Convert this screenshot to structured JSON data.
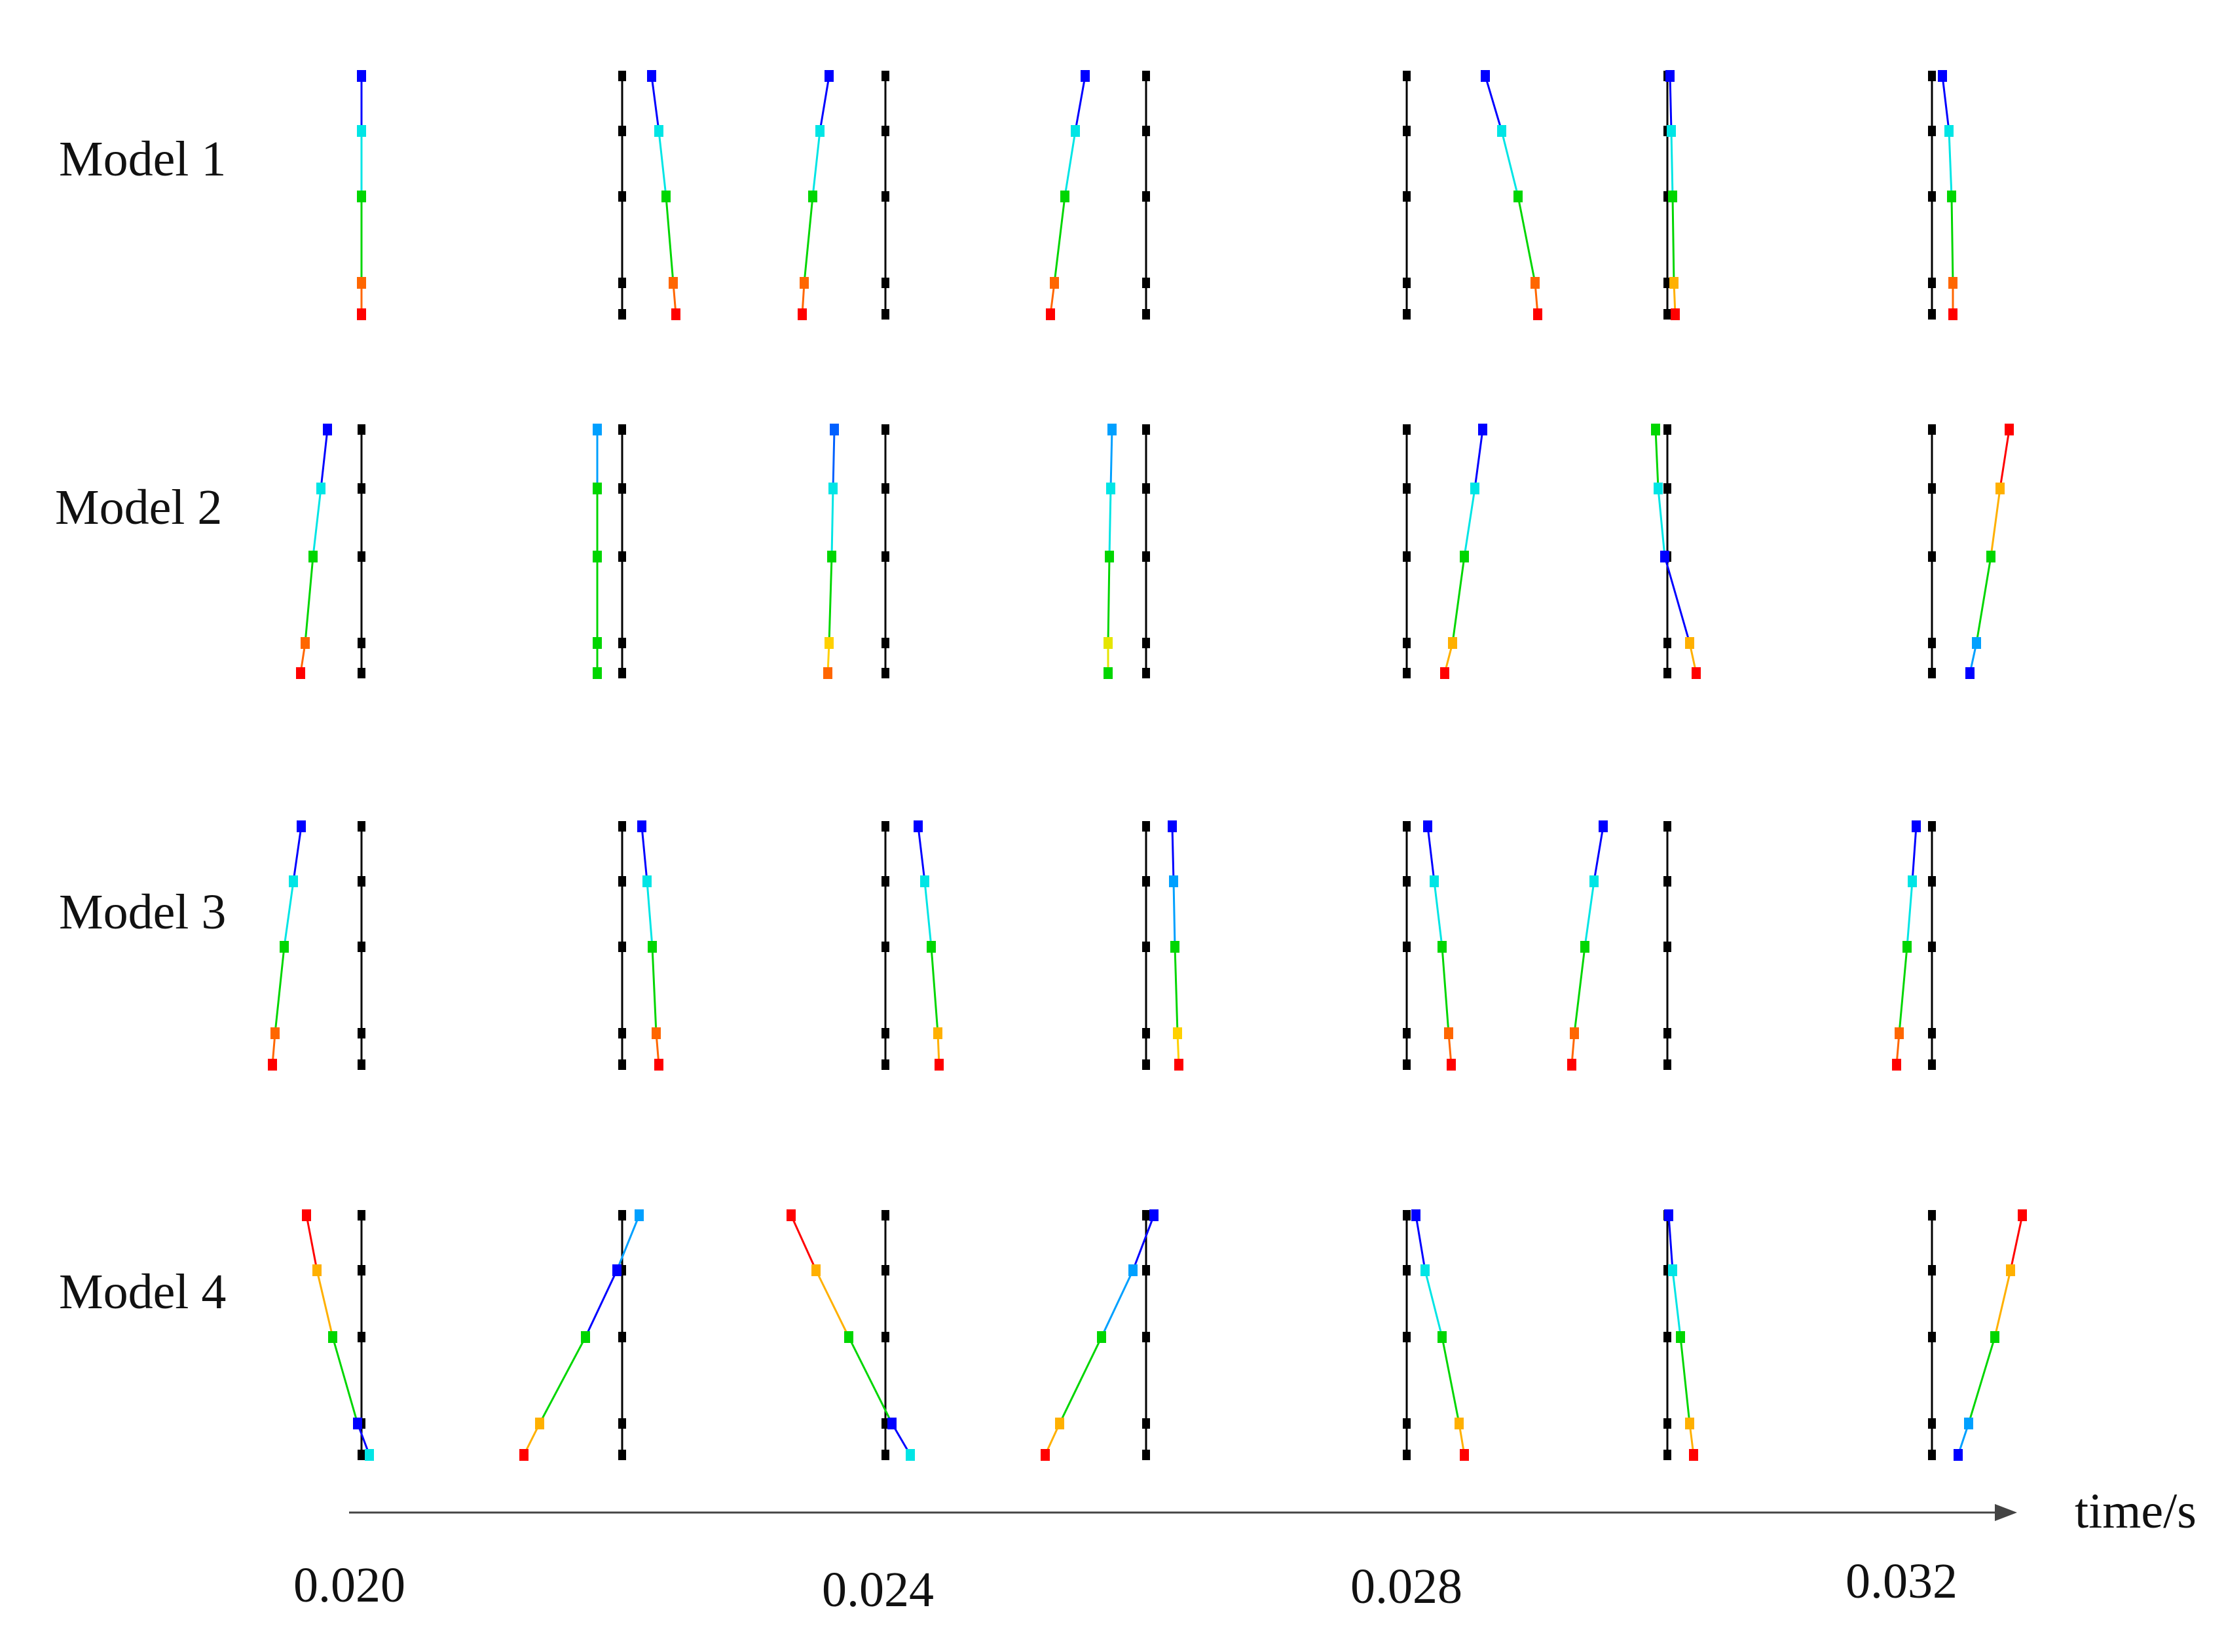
{
  "figure": {
    "row_labels": [
      "Model 1",
      "Model 2",
      "Model 3",
      "Model 4"
    ],
    "time_axis": {
      "label": "time/s",
      "ticks": [
        "0.020",
        "0.024",
        "0.028",
        "0.032"
      ]
    },
    "reference_line_color": "#000000",
    "gradient_colors": [
      "#0000ff",
      "#00e5e5",
      "#00d600",
      "#ffb000",
      "#ff6600",
      "#ff0000"
    ],
    "snapshots": [
      [
        {
          "ref": 0,
          "pts": [
            [
              0,
              "#0000ff"
            ],
            [
              0,
              "#00e5e5"
            ],
            [
              0,
              "#00d600"
            ],
            [
              0,
              "#ff6600"
            ],
            [
              0,
              "#ff0000"
            ]
          ]
        },
        {
          "ref": 0,
          "pts": [
            [
              45,
              "#0000ff"
            ],
            [
              56,
              "#00e5e5"
            ],
            [
              67,
              "#00d600"
            ],
            [
              78,
              "#ff6600"
            ],
            [
              82,
              "#ff0000"
            ]
          ]
        },
        {
          "ref": 0,
          "pts": [
            [
              -86,
              "#0000ff"
            ],
            [
              -100,
              "#00e5e5"
            ],
            [
              -111,
              "#00d600"
            ],
            [
              -124,
              "#ff6600"
            ],
            [
              -127,
              "#ff0000"
            ]
          ]
        },
        {
          "ref": 0,
          "pts": [
            [
              -93,
              "#0000ff"
            ],
            [
              -108,
              "#00e5e5"
            ],
            [
              -124,
              "#00d600"
            ],
            [
              -140,
              "#ff6600"
            ],
            [
              -146,
              "#ff0000"
            ]
          ]
        },
        {
          "ref": 0,
          "pts": [
            [
              120,
              "#0000ff"
            ],
            [
              145,
              "#00e5e5"
            ],
            [
              170,
              "#00d600"
            ],
            [
              196,
              "#ff6600"
            ],
            [
              200,
              "#ff0000"
            ]
          ]
        },
        {
          "ref": 0,
          "pts": [
            [
              4,
              "#0000ff"
            ],
            [
              6,
              "#00e5e5"
            ],
            [
              8,
              "#00d600"
            ],
            [
              10,
              "#ffb000"
            ],
            [
              12,
              "#ff0000"
            ]
          ]
        },
        {
          "ref": 0,
          "pts": [
            [
              16,
              "#0000ff"
            ],
            [
              26,
              "#00e5e5"
            ],
            [
              30,
              "#00d600"
            ],
            [
              32,
              "#ff6600"
            ],
            [
              32,
              "#ff0000"
            ]
          ]
        }
      ],
      [
        {
          "ref": 0,
          "pts": [
            [
              -52,
              "#0000ff"
            ],
            [
              -62,
              "#00e5e5"
            ],
            [
              -74,
              "#00d600"
            ],
            [
              -86,
              "#ff6600"
            ],
            [
              -93,
              "#ff0000"
            ]
          ]
        },
        {
          "ref": 0,
          "pts": [
            [
              -38,
              "#00a0ff"
            ],
            [
              -38,
              "#00d600"
            ],
            [
              -38,
              "#00d600"
            ],
            [
              -38,
              "#00d600"
            ],
            [
              -38,
              "#00d600"
            ]
          ]
        },
        {
          "ref": 0,
          "pts": [
            [
              -78,
              "#0060ff"
            ],
            [
              -80,
              "#00e5e5"
            ],
            [
              -82,
              "#00d600"
            ],
            [
              -86,
              "#ffd000"
            ],
            [
              -88,
              "#ff6600"
            ]
          ]
        },
        {
          "ref": 0,
          "pts": [
            [
              -52,
              "#00a0ff"
            ],
            [
              -54,
              "#00e5e5"
            ],
            [
              -56,
              "#00d600"
            ],
            [
              -58,
              "#e5e500"
            ],
            [
              -58,
              "#00d600"
            ]
          ]
        },
        {
          "ref": 0,
          "pts": [
            [
              116,
              "#0000ff"
            ],
            [
              104,
              "#00e5e5"
            ],
            [
              88,
              "#00d600"
            ],
            [
              70,
              "#ffb000"
            ],
            [
              58,
              "#ff0000"
            ]
          ]
        },
        {
          "ref": 0,
          "pts": [
            [
              -18,
              "#00d600"
            ],
            [
              -14,
              "#00e5e5"
            ],
            [
              -4,
              "#0000ff"
            ],
            [
              34,
              "#ffb000"
            ],
            [
              44,
              "#ff0000"
            ]
          ]
        },
        {
          "ref": 0,
          "pts": [
            [
              118,
              "#ff0000"
            ],
            [
              104,
              "#ffb000"
            ],
            [
              90,
              "#00d600"
            ],
            [
              68,
              "#00a0ff"
            ],
            [
              58,
              "#0000ff"
            ]
          ]
        }
      ],
      [
        {
          "ref": 0,
          "pts": [
            [
              -92,
              "#0000ff"
            ],
            [
              -104,
              "#00e5e5"
            ],
            [
              -118,
              "#00d600"
            ],
            [
              -132,
              "#ff6600"
            ],
            [
              -136,
              "#ff0000"
            ]
          ]
        },
        {
          "ref": 0,
          "pts": [
            [
              30,
              "#0000ff"
            ],
            [
              38,
              "#00e5e5"
            ],
            [
              46,
              "#00d600"
            ],
            [
              52,
              "#ff6600"
            ],
            [
              56,
              "#ff0000"
            ]
          ]
        },
        {
          "ref": 0,
          "pts": [
            [
              50,
              "#0000ff"
            ],
            [
              60,
              "#00e5e5"
            ],
            [
              70,
              "#00d600"
            ],
            [
              80,
              "#ffb000"
            ],
            [
              82,
              "#ff0000"
            ]
          ]
        },
        {
          "ref": 0,
          "pts": [
            [
              40,
              "#0000ff"
            ],
            [
              42,
              "#00a0ff"
            ],
            [
              44,
              "#00d600"
            ],
            [
              48,
              "#ffd000"
            ],
            [
              50,
              "#ff0000"
            ]
          ]
        },
        {
          "ref": 0,
          "pts": [
            [
              32,
              "#0000ff"
            ],
            [
              42,
              "#00e5e5"
            ],
            [
              54,
              "#00d600"
            ],
            [
              64,
              "#ff6600"
            ],
            [
              68,
              "#ff0000"
            ]
          ]
        },
        {
          "ref": 0,
          "pts": [
            [
              -98,
              "#0000ff"
            ],
            [
              -112,
              "#00e5e5"
            ],
            [
              -126,
              "#00d600"
            ],
            [
              -142,
              "#ff6600"
            ],
            [
              -146,
              "#ff0000"
            ]
          ]
        },
        {
          "ref": 0,
          "pts": [
            [
              -24,
              "#0000ff"
            ],
            [
              -30,
              "#00e5e5"
            ],
            [
              -38,
              "#00d600"
            ],
            [
              -50,
              "#ff6600"
            ],
            [
              -54,
              "#ff0000"
            ]
          ]
        }
      ],
      [
        {
          "ref": 0,
          "pts": [
            [
              -84,
              "#ff0000"
            ],
            [
              -68,
              "#ffb000"
            ],
            [
              -44,
              "#00d600"
            ],
            [
              -6,
              "#0000ff"
            ],
            [
              12,
              "#00e5e5"
            ]
          ]
        },
        {
          "ref": 0,
          "pts": [
            [
              26,
              "#00a0ff"
            ],
            [
              -8,
              "#0000ff"
            ],
            [
              -56,
              "#00d600"
            ],
            [
              -126,
              "#ffb000"
            ],
            [
              -150,
              "#ff0000"
            ]
          ]
        },
        {
          "ref": 0,
          "pts": [
            [
              -144,
              "#ff0000"
            ],
            [
              -106,
              "#ffb000"
            ],
            [
              -56,
              "#00d600"
            ],
            [
              10,
              "#0000ff"
            ],
            [
              38,
              "#00e5e5"
            ]
          ]
        },
        {
          "ref": 0,
          "pts": [
            [
              12,
              "#0000ff"
            ],
            [
              -20,
              "#00a0ff"
            ],
            [
              -68,
              "#00d600"
            ],
            [
              -132,
              "#ffb000"
            ],
            [
              -154,
              "#ff0000"
            ]
          ]
        },
        {
          "ref": 0,
          "pts": [
            [
              14,
              "#0000ff"
            ],
            [
              28,
              "#00e5e5"
            ],
            [
              54,
              "#00d600"
            ],
            [
              80,
              "#ffb000"
            ],
            [
              88,
              "#ff0000"
            ]
          ]
        },
        {
          "ref": 0,
          "pts": [
            [
              2,
              "#0000ff"
            ],
            [
              8,
              "#00e5e5"
            ],
            [
              20,
              "#00d600"
            ],
            [
              34,
              "#ffb000"
            ],
            [
              40,
              "#ff0000"
            ]
          ]
        },
        {
          "ref": 0,
          "pts": [
            [
              138,
              "#ff0000"
            ],
            [
              120,
              "#ffb000"
            ],
            [
              96,
              "#00d600"
            ],
            [
              56,
              "#00a0ff"
            ],
            [
              40,
              "#0000ff"
            ]
          ]
        }
      ]
    ]
  }
}
